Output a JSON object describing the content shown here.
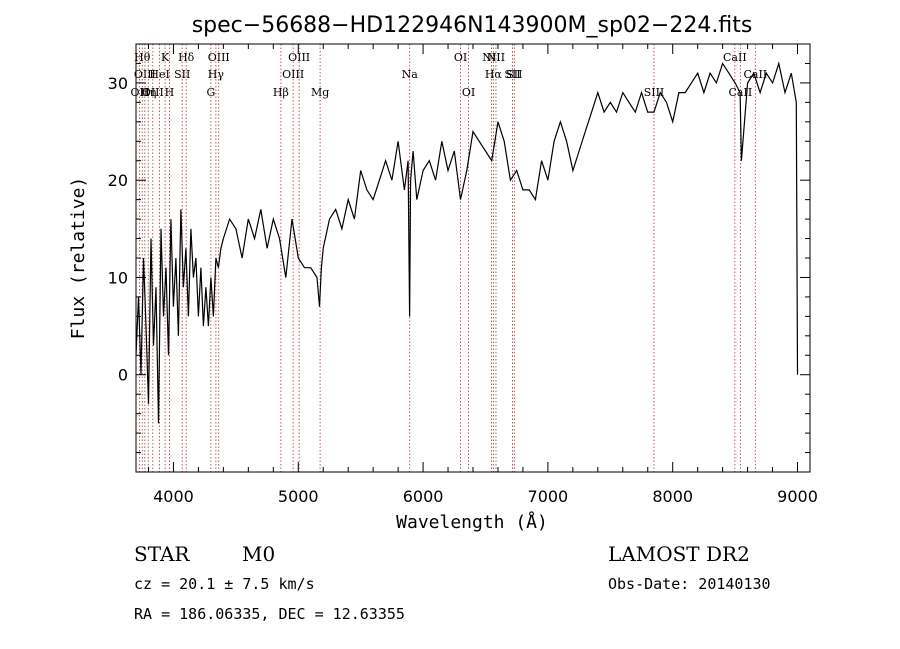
{
  "chart_data": {
    "type": "line",
    "title": "spec−56688−HD122946N143900M_sp02−224.fits",
    "xlabel": "Wavelength (Å)",
    "ylabel": "Flux (relative)",
    "xlim": [
      3700,
      9100
    ],
    "ylim": [
      -10,
      34
    ],
    "xticks": [
      4000,
      5000,
      6000,
      7000,
      8000,
      9000
    ],
    "yticks": [
      0,
      10,
      20,
      30
    ],
    "xtick_labels": [
      "4000",
      "5000",
      "6000",
      "7000",
      "8000",
      "9000"
    ],
    "ytick_labels": [
      "0",
      "10",
      "20",
      "30"
    ],
    "series": [
      {
        "name": "flux",
        "x": [
          3700,
          3720,
          3740,
          3760,
          3780,
          3800,
          3820,
          3840,
          3860,
          3880,
          3900,
          3920,
          3940,
          3960,
          3980,
          4000,
          4020,
          4040,
          4060,
          4080,
          4100,
          4120,
          4140,
          4160,
          4180,
          4200,
          4220,
          4240,
          4260,
          4280,
          4300,
          4320,
          4340,
          4360,
          4380,
          4400,
          4450,
          4500,
          4550,
          4600,
          4650,
          4700,
          4750,
          4800,
          4850,
          4900,
          4950,
          5000,
          5050,
          5100,
          5150,
          5170,
          5185,
          5200,
          5250,
          5300,
          5350,
          5400,
          5450,
          5500,
          5550,
          5600,
          5650,
          5700,
          5750,
          5800,
          5850,
          5880,
          5892,
          5900,
          5920,
          5950,
          6000,
          6050,
          6100,
          6150,
          6200,
          6250,
          6300,
          6350,
          6400,
          6450,
          6500,
          6550,
          6600,
          6650,
          6700,
          6750,
          6800,
          6850,
          6900,
          6950,
          7000,
          7050,
          7100,
          7150,
          7200,
          7250,
          7300,
          7350,
          7400,
          7450,
          7500,
          7550,
          7600,
          7650,
          7700,
          7750,
          7800,
          7850,
          7900,
          7950,
          8000,
          8050,
          8100,
          8150,
          8200,
          8250,
          8300,
          8350,
          8400,
          8450,
          8500,
          8540,
          8550,
          8600,
          8650,
          8700,
          8750,
          8800,
          8850,
          8900,
          8950,
          8990,
          9000
        ],
        "values": [
          2,
          8,
          0,
          12,
          5,
          -3,
          14,
          3,
          9,
          -5,
          15,
          6,
          11,
          2,
          16,
          7,
          12,
          4,
          17,
          9,
          13,
          6,
          15,
          10,
          12,
          6,
          11,
          5,
          9,
          5,
          10,
          6,
          12,
          11,
          13,
          14,
          16,
          15,
          12,
          16,
          14,
          17,
          13,
          16,
          14,
          10,
          16,
          12,
          11,
          11,
          10,
          7,
          11,
          13,
          16,
          17,
          15,
          18,
          16,
          21,
          19,
          18,
          20,
          22,
          20,
          24,
          19,
          22,
          6,
          20,
          23,
          18,
          21,
          22,
          20,
          24,
          21,
          23,
          18,
          21,
          25,
          24,
          23,
          22,
          26,
          24,
          20,
          21,
          19,
          19,
          18,
          22,
          20,
          24,
          26,
          24,
          21,
          23,
          25,
          27,
          29,
          27,
          28,
          27,
          29,
          28,
          27,
          29,
          27,
          27,
          29,
          28,
          26,
          29,
          29,
          30,
          31,
          29,
          31,
          30,
          32,
          31,
          30,
          29,
          22,
          30,
          31,
          29,
          31,
          30,
          32,
          29,
          31,
          28,
          0
        ]
      }
    ],
    "reference_lines": [
      {
        "x": 3727,
        "label": "OII",
        "row": 3
      },
      {
        "x": 3750,
        "label": "Hθ",
        "row": 1
      },
      {
        "x": 3771,
        "label": "OIII",
        "row": 2
      },
      {
        "x": 3798,
        "label": "Hη",
        "row": 3
      },
      {
        "x": 3835,
        "label": "OIII",
        "row": 3
      },
      {
        "x": 3889,
        "label": "HeI",
        "row": 2
      },
      {
        "x": 3933,
        "label": "K",
        "row": 1
      },
      {
        "x": 3968,
        "label": "H",
        "row": 3
      },
      {
        "x": 4070,
        "label": "SII",
        "row": 2
      },
      {
        "x": 4102,
        "label": "Hδ",
        "row": 1
      },
      {
        "x": 4300,
        "label": "G",
        "row": 3
      },
      {
        "x": 4340,
        "label": "Hγ",
        "row": 2
      },
      {
        "x": 4363,
        "label": "OIII",
        "row": 1
      },
      {
        "x": 4861,
        "label": "Hβ",
        "row": 3
      },
      {
        "x": 4959,
        "label": "OIII",
        "row": 2
      },
      {
        "x": 5007,
        "label": "OIII",
        "row": 1
      },
      {
        "x": 5175,
        "label": "Mg",
        "row": 3
      },
      {
        "x": 5893,
        "label": "Na",
        "row": 2
      },
      {
        "x": 6300,
        "label": "OI",
        "row": 1
      },
      {
        "x": 6364,
        "label": "OI",
        "row": 3
      },
      {
        "x": 6548,
        "label": "NII",
        "row": 1
      },
      {
        "x": 6563,
        "label": "Hα",
        "row": 2
      },
      {
        "x": 6584,
        "label": "NII",
        "row": 1
      },
      {
        "x": 6716,
        "label": "SII",
        "row": 2
      },
      {
        "x": 6731,
        "label": "SII",
        "row": 2
      },
      {
        "x": 7850,
        "label": "SIII",
        "row": 3
      },
      {
        "x": 8498,
        "label": "CaII",
        "row": 1
      },
      {
        "x": 8542,
        "label": "CaII",
        "row": 3
      },
      {
        "x": 8662,
        "label": "CaII",
        "row": 2
      }
    ]
  },
  "info": {
    "class": "STAR",
    "subclass": "M0",
    "survey": "LAMOST DR2",
    "cz": "cz = 20.1 ± 7.5 km/s",
    "obs_date": "Obs-Date: 20140130",
    "coords": "RA = 186.06335, DEC =  12.63355"
  }
}
